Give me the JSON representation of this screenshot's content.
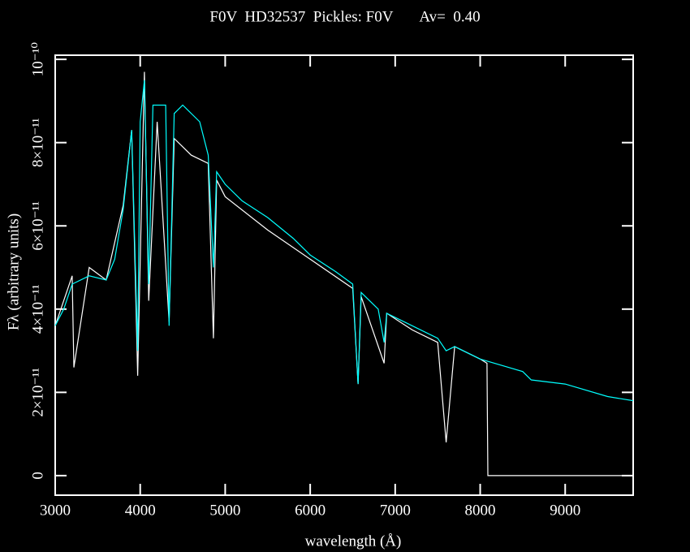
{
  "chart_data": {
    "type": "line",
    "title": "F0V  HD32537  Pickles: F0V       Av=  0.40",
    "x_label": "wavelength (Å)",
    "y_label": "Fλ (arbitrary units)",
    "xlim": [
      3000,
      9800
    ],
    "ylim": [
      -4.7e-12,
      1.01e-10
    ],
    "xticks": [
      3000,
      4000,
      5000,
      6000,
      7000,
      8000,
      9000
    ],
    "yticks": [
      {
        "value": 0,
        "label": "0"
      },
      {
        "value": 2e-11,
        "label": "2×10⁻¹¹"
      },
      {
        "value": 4e-11,
        "label": "4×10⁻¹¹"
      },
      {
        "value": 6e-11,
        "label": "6×10⁻¹¹"
      },
      {
        "value": 8e-11,
        "label": "8×10⁻¹¹"
      },
      {
        "value": 1e-10,
        "label": "10⁻¹⁰"
      }
    ],
    "series": [
      {
        "color": "#ffffff",
        "x": [
          3000,
          3200,
          3220,
          3400,
          3600,
          3700,
          3800,
          3900,
          3970,
          4050,
          4100,
          4200,
          4340,
          4400,
          4600,
          4800,
          4861,
          4900,
          5000,
          5500,
          6000,
          6500,
          6563,
          6600,
          6870,
          6900,
          7200,
          7500,
          7600,
          7700,
          8000,
          8080,
          8090,
          9800
        ],
        "values": [
          3.6e-11,
          4.8e-11,
          2.6e-11,
          5e-11,
          4.7e-11,
          5.6e-11,
          6.5e-11,
          8.3e-11,
          2.4e-11,
          9.7e-11,
          4.2e-11,
          8.5e-11,
          3.7e-11,
          8.1e-11,
          7.7e-11,
          7.5e-11,
          3.3e-11,
          7.1e-11,
          6.7e-11,
          5.9e-11,
          5.2e-11,
          4.5e-11,
          2.2e-11,
          4.3e-11,
          2.7e-11,
          3.9e-11,
          3.5e-11,
          3.2e-11,
          8e-12,
          3.1e-11,
          2.8e-11,
          2.7e-11,
          0,
          0
        ]
      },
      {
        "color": "#00ffff",
        "x": [
          3000,
          3100,
          3200,
          3400,
          3600,
          3700,
          3800,
          3900,
          3970,
          4000,
          4050,
          4100,
          4150,
          4300,
          4340,
          4400,
          4500,
          4700,
          4800,
          4861,
          4900,
          5000,
          5200,
          5500,
          5800,
          6000,
          6300,
          6500,
          6563,
          6600,
          6800,
          6870,
          6900,
          7200,
          7500,
          7600,
          7700,
          8000,
          8500,
          8600,
          9000,
          9500,
          9800
        ],
        "values": [
          3.6e-11,
          4e-11,
          4.6e-11,
          4.8e-11,
          4.7e-11,
          5.2e-11,
          6.4e-11,
          8.3e-11,
          3e-11,
          8.5e-11,
          9.5e-11,
          4.6e-11,
          8.9e-11,
          8.9e-11,
          3.6e-11,
          8.7e-11,
          8.9e-11,
          8.5e-11,
          7.7e-11,
          5e-11,
          7.3e-11,
          7e-11,
          6.6e-11,
          6.2e-11,
          5.7e-11,
          5.3e-11,
          4.9e-11,
          4.6e-11,
          2.2e-11,
          4.4e-11,
          4e-11,
          3.2e-11,
          3.9e-11,
          3.6e-11,
          3.3e-11,
          3e-11,
          3.1e-11,
          2.8e-11,
          2.5e-11,
          2.3e-11,
          2.2e-11,
          1.9e-11,
          1.8e-11
        ]
      }
    ]
  }
}
